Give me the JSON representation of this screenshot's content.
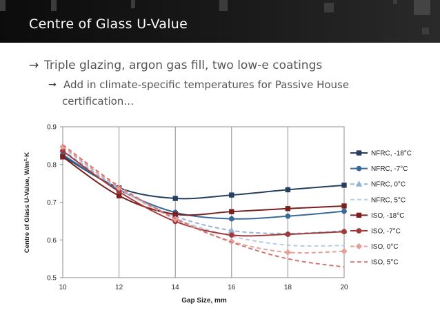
{
  "slide": {
    "title": "Centre of Glass U-Value",
    "bullets": [
      {
        "arrow": "→",
        "text": "Triple glazing, argon gas fill, two low-e coatings"
      },
      {
        "arrow": "→",
        "text": "Add in climate-specific temperatures for Passive House",
        "text2": "certification…"
      }
    ]
  },
  "chart_data": {
    "type": "line",
    "xlabel": "Gap Size, mm",
    "ylabel": "Centre of Glass U-Value, W/m²·K",
    "xlim": [
      10,
      20
    ],
    "ylim": [
      0.5,
      0.9
    ],
    "x_ticks": [
      "10",
      "12",
      "14",
      "16",
      "18",
      "20"
    ],
    "y_ticks": [
      "0.5",
      "0.6",
      "0.7",
      "0.8",
      "0.9"
    ],
    "grid": "vertical",
    "legend": "right",
    "x": [
      10,
      12,
      14,
      16,
      18,
      20
    ],
    "series": [
      {
        "name": "NFRC, -18°C",
        "values": [
          0.822,
          0.738,
          0.71,
          0.719,
          0.733,
          0.745
        ],
        "color": "#243f60",
        "style": "solid",
        "marker": "square"
      },
      {
        "name": "NFRC, -7°C",
        "values": [
          0.826,
          0.733,
          0.673,
          0.656,
          0.663,
          0.676
        ],
        "color": "#3a6a9a",
        "style": "solid",
        "marker": "circle"
      },
      {
        "name": "NFRC, 0°C",
        "values": [
          0.838,
          0.735,
          0.663,
          0.625,
          0.617,
          0.624
        ],
        "color": "#95b3d7",
        "style": "dashed",
        "marker": "triangle"
      },
      {
        "name": "NFRC, 5°C",
        "values": [
          0.845,
          0.737,
          0.657,
          0.61,
          0.586,
          0.585
        ],
        "color": "#b9cde5",
        "style": "dashed",
        "marker": "none"
      },
      {
        "name": "ISO, -18°C",
        "values": [
          0.82,
          0.717,
          0.668,
          0.675,
          0.683,
          0.69
        ],
        "color": "#7a1e1e",
        "style": "solid",
        "marker": "square"
      },
      {
        "name": "ISO, -7°C",
        "values": [
          0.836,
          0.728,
          0.649,
          0.613,
          0.615,
          0.622
        ],
        "color": "#a33a3a",
        "style": "solid",
        "marker": "circle"
      },
      {
        "name": "ISO, 0°C",
        "values": [
          0.847,
          0.738,
          0.655,
          0.596,
          0.567,
          0.57
        ],
        "color": "#e6a09a",
        "style": "dashed",
        "marker": "diamond"
      },
      {
        "name": "ISO, 5°C",
        "values": [
          0.852,
          0.742,
          0.657,
          0.594,
          0.55,
          0.528
        ],
        "color": "#d47470",
        "style": "dashed",
        "marker": "none"
      }
    ]
  }
}
